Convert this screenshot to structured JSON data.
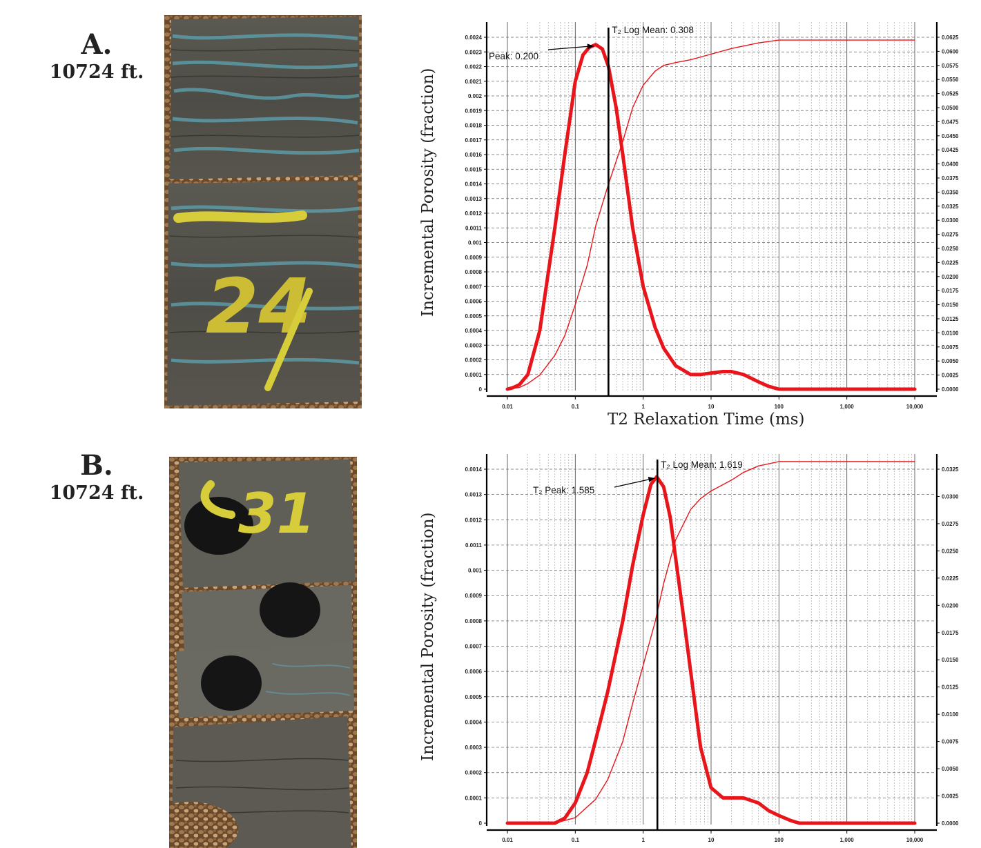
{
  "panels": [
    {
      "letter": "A.",
      "depth": "10724 ft.",
      "core_marking": "24"
    },
    {
      "letter": "B.",
      "depth": "10724 ft.",
      "core_marking": "31"
    }
  ],
  "colors": {
    "distribution": "#e8151b",
    "cumulative": "#e8151b",
    "marker": "#000000",
    "grid": "#7a7a7a"
  },
  "chart_data": [
    {
      "type": "line",
      "x_scale": "log",
      "xlabel": "T2 Relaxation Time (ms)",
      "ylabel": "Incremental Porosity (fraction)",
      "xlim": [
        0.01,
        10000
      ],
      "ylim": [
        0,
        0.0024
      ],
      "y2lim": [
        0,
        0.0625
      ],
      "x_ticks": [
        0.01,
        0.1,
        1,
        10,
        100,
        1000,
        10000
      ],
      "x_tick_labels": [
        "0.01",
        "0.1",
        "1",
        "10",
        "100",
        "1,000",
        "10,000"
      ],
      "y_tick_labels": [
        "0",
        "0.0001",
        "0.0002",
        "0.0003",
        "0.0004",
        "0.0005",
        "0.0006",
        "0.0007",
        "0.0008",
        "0.0009",
        "0.001",
        "0.0011",
        "0.0012",
        "0.0013",
        "0.0014",
        "0.0015",
        "0.0016",
        "0.0017",
        "0.0018",
        "0.0019",
        "0.002",
        "0.0021",
        "0.0022",
        "0.0023",
        "0.0024"
      ],
      "y2_tick_labels": [
        "0.0000",
        "0.0025",
        "0.0050",
        "0.0075",
        "0.0100",
        "0.0125",
        "0.0150",
        "0.0175",
        "0.0200",
        "0.0225",
        "0.0250",
        "0.0275",
        "0.0300",
        "0.0325",
        "0.0350",
        "0.0375",
        "0.0400",
        "0.0425",
        "0.0450",
        "0.0475",
        "0.0500",
        "0.0525",
        "0.0550",
        "0.0575",
        "0.0600",
        "0.0625"
      ],
      "grid": true,
      "series": [
        {
          "x": [
            0.01,
            0.012,
            0.015,
            0.02,
            0.03,
            0.05,
            0.07,
            0.1,
            0.13,
            0.16,
            0.2,
            0.25,
            0.308,
            0.4,
            0.5,
            0.7,
            1,
            1.5,
            2,
            3,
            5,
            7,
            10,
            15,
            20,
            30,
            50,
            70,
            100,
            10000
          ],
          "y": [
            0.0,
            1e-05,
            3e-05,
            0.0001,
            0.0004,
            0.0011,
            0.0016,
            0.0021,
            0.00228,
            0.00233,
            0.00235,
            0.00232,
            0.0022,
            0.00192,
            0.0016,
            0.0011,
            0.0007,
            0.00042,
            0.00028,
            0.00016,
            0.0001,
            0.0001,
            0.00011,
            0.00012,
            0.00012,
            0.0001,
            5e-05,
            2e-05,
            0.0,
            0.0
          ]
        },
        {
          "x": [
            0.01,
            0.015,
            0.02,
            0.03,
            0.05,
            0.07,
            0.1,
            0.15,
            0.2,
            0.3,
            0.5,
            0.7,
            1,
            1.5,
            2,
            3,
            5,
            10,
            20,
            50,
            100,
            200,
            10000
          ],
          "y2": [
            0.0,
            0.0003,
            0.001,
            0.0025,
            0.006,
            0.0095,
            0.015,
            0.022,
            0.029,
            0.036,
            0.044,
            0.05,
            0.054,
            0.0565,
            0.0575,
            0.058,
            0.0585,
            0.0595,
            0.0605,
            0.0615,
            0.062,
            0.062,
            0.062
          ]
        }
      ],
      "marker_x": 0.308,
      "peak": {
        "x": 0.2,
        "y": 0.00235
      },
      "annotations": {
        "log_mean": "T₂ Log Mean: 0.308",
        "peak": "Peak: 0.200"
      }
    },
    {
      "type": "line",
      "x_scale": "log",
      "xlabel": "",
      "ylabel": "Incremental Porosity (fraction)",
      "xlim": [
        0.01,
        10000
      ],
      "ylim": [
        0,
        0.0014
      ],
      "y2lim": [
        0,
        0.0325
      ],
      "x_ticks": [
        0.01,
        0.1,
        1,
        10,
        100,
        1000,
        10000
      ],
      "x_tick_labels": [
        "0.01",
        "0.1",
        "1",
        "10",
        "100",
        "1,000",
        "10,000"
      ],
      "y_tick_labels": [
        "0",
        "0.0001",
        "0.0002",
        "0.0003",
        "0.0004",
        "0.0005",
        "0.0006",
        "0.0007",
        "0.0008",
        "0.0009",
        "0.001",
        "0.0011",
        "0.0012",
        "0.0013",
        "0.0014"
      ],
      "y2_tick_labels": [
        "0.0000",
        "0.0025",
        "0.0050",
        "0.0075",
        "0.0100",
        "0.0125",
        "0.0150",
        "0.0175",
        "0.0200",
        "0.0225",
        "0.0250",
        "0.0275",
        "0.0300",
        "0.0325"
      ],
      "grid": true,
      "series": [
        {
          "x": [
            0.01,
            0.05,
            0.07,
            0.1,
            0.15,
            0.2,
            0.3,
            0.5,
            0.7,
            1,
            1.3,
            1.585,
            2,
            2.5,
            3,
            4,
            5,
            7,
            10,
            15,
            20,
            30,
            50,
            70,
            100,
            150,
            200,
            10000
          ],
          "y": [
            0.0,
            0.0,
            2e-05,
            8e-05,
            0.0002,
            0.00033,
            0.00052,
            0.0008,
            0.00102,
            0.00122,
            0.00134,
            0.00137,
            0.00133,
            0.00121,
            0.00105,
            0.0008,
            0.0006,
            0.0003,
            0.00014,
            0.0001,
            0.0001,
            0.0001,
            8e-05,
            5e-05,
            3e-05,
            1e-05,
            0.0,
            0.0
          ]
        },
        {
          "x": [
            0.01,
            0.05,
            0.1,
            0.2,
            0.3,
            0.5,
            0.7,
            1,
            1.5,
            2,
            3,
            5,
            7,
            10,
            20,
            30,
            50,
            100,
            200,
            10000
          ],
          "y2": [
            0.0,
            0.0,
            0.0005,
            0.0022,
            0.004,
            0.0075,
            0.011,
            0.0145,
            0.0185,
            0.022,
            0.026,
            0.0288,
            0.0298,
            0.0305,
            0.0315,
            0.0322,
            0.0328,
            0.0332,
            0.0332,
            0.0332
          ]
        }
      ],
      "marker_x": 1.619,
      "peak": {
        "x": 1.585,
        "y": 0.00137
      },
      "annotations": {
        "log_mean": "T₂ Log Mean: 1.619",
        "peak": "T₂ Peak: 1.585"
      }
    }
  ]
}
